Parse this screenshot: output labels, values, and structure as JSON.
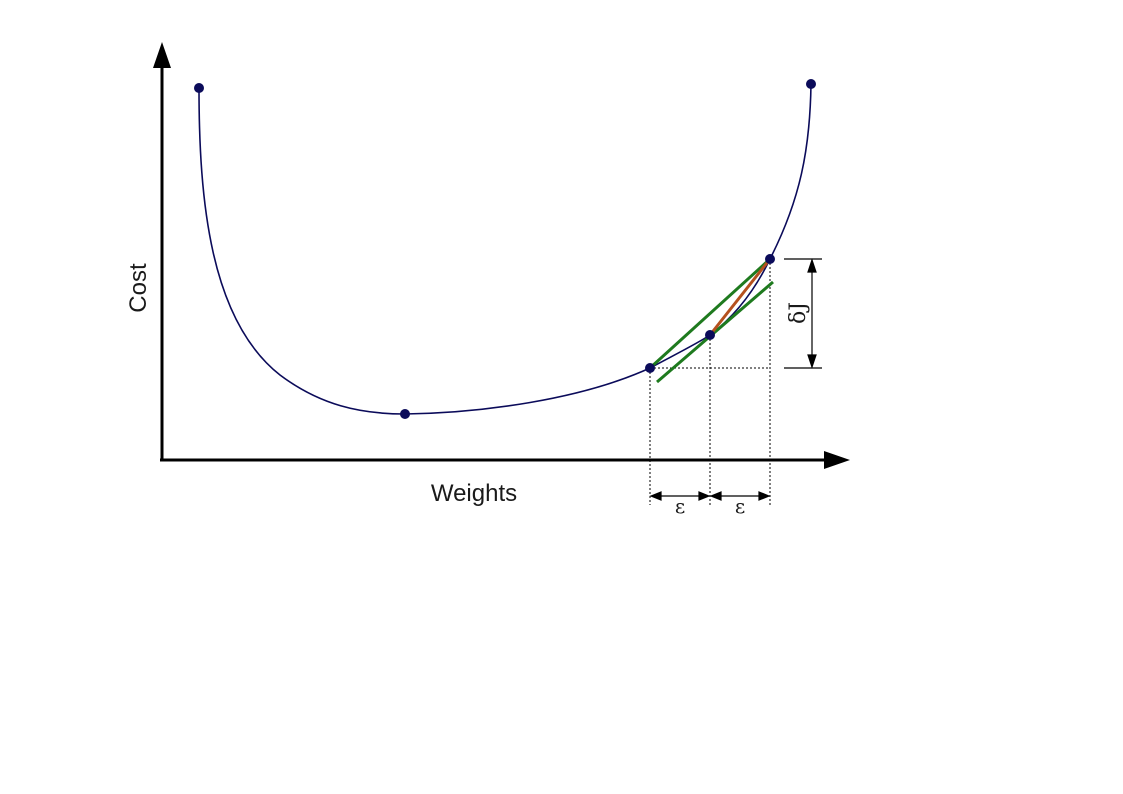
{
  "labels": {
    "x_axis": "Weights",
    "y_axis": "Cost",
    "epsilon_left": "ε",
    "epsilon_right": "ε",
    "delta_j": "δJ"
  },
  "colors": {
    "curve": "#0b0b5a",
    "points": "#0b0b5a",
    "secant": "#1e7a1e",
    "tangent": "#1e7a1e",
    "gradient": "#b5501e",
    "axes": "#000000",
    "guides": "#000000"
  }
}
